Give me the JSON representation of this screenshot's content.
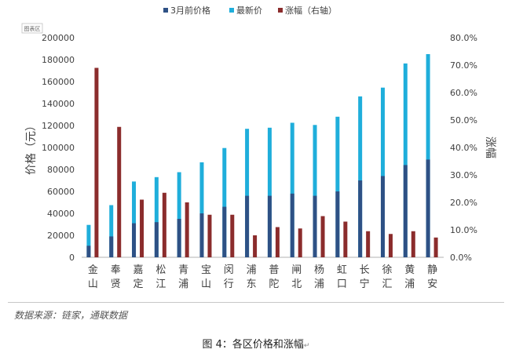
{
  "chart_data": {
    "type": "bar",
    "title_badge": "图表区",
    "categories": [
      "金山",
      "奉贤",
      "嘉定",
      "松江",
      "青浦",
      "宝山",
      "闵行",
      "浦东",
      "普陀",
      "闸北",
      "杨浦",
      "虹口",
      "长宁",
      "徐汇",
      "黄浦",
      "静安"
    ],
    "series": [
      {
        "name": "3月前价格",
        "axis": "left",
        "color": "#2E5185",
        "values": [
          10500,
          19000,
          31000,
          32000,
          35000,
          40000,
          46000,
          56000,
          56000,
          58000,
          56000,
          60000,
          70000,
          74000,
          84000,
          89000
        ]
      },
      {
        "name": "最新价",
        "axis": "left",
        "color": "#1FAEDB",
        "values": [
          29500,
          47500,
          69000,
          73000,
          77500,
          86500,
          99500,
          117000,
          118000,
          122500,
          120500,
          128000,
          146500,
          154500,
          176500,
          185000
        ]
      },
      {
        "name": "涨幅（右轴）",
        "axis": "right",
        "color": "#8B2C2C",
        "values": [
          0.69,
          0.475,
          0.21,
          0.235,
          0.2,
          0.155,
          0.155,
          0.08,
          0.11,
          0.105,
          0.15,
          0.13,
          0.095,
          0.085,
          0.095,
          0.072
        ]
      }
    ],
    "ylabel": "价格（元）",
    "y2label": "涨幅",
    "ylim": [
      0,
      200000
    ],
    "yticks": [
      "0",
      "20000",
      "40000",
      "60000",
      "80000",
      "100000",
      "120000",
      "140000",
      "160000",
      "180000",
      "200000"
    ],
    "y2lim": [
      0,
      0.8
    ],
    "y2ticks": [
      "0.0%",
      "10.0%",
      "20.0%",
      "30.0%",
      "40.0%",
      "50.0%",
      "60.0%",
      "70.0%",
      "80.0%"
    ],
    "legend_position": "top-center",
    "grid": false
  },
  "footer": {
    "source": "数据来源：链家，通联数据",
    "caption": "图 4：各区价格和涨幅",
    "caption_mark": "↵"
  }
}
